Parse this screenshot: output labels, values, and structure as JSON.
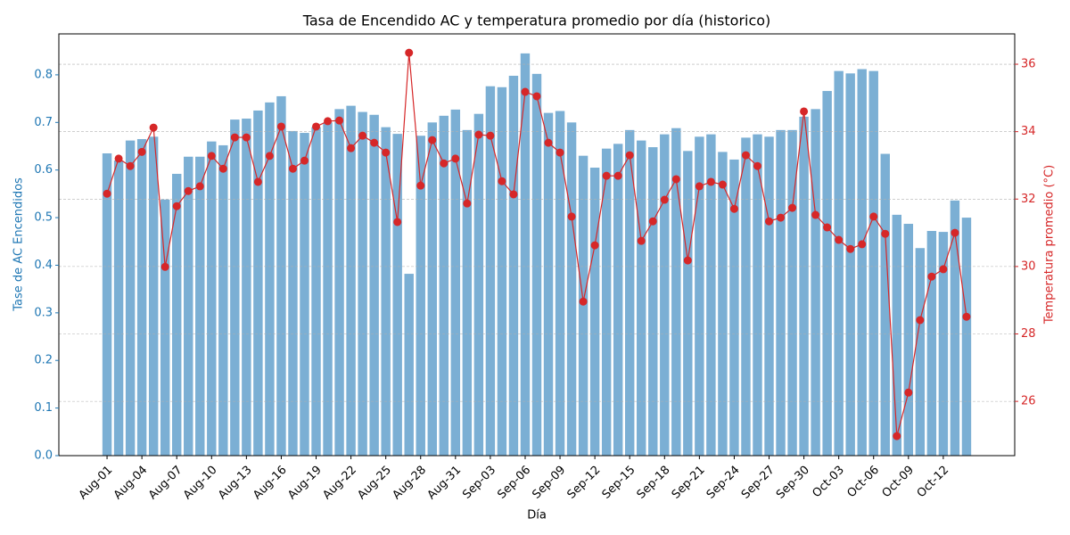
{
  "chart_data": {
    "type": "bar",
    "title": "Tasa de Encendido AC y temperatura promedio por día (historico)",
    "x_label": "Día",
    "y_label": "Tase de AC Encendidos",
    "y2_label": "Temperatura promedio (°C)",
    "categories": [
      "Aug-01",
      null,
      null,
      "Aug-04",
      null,
      null,
      "Aug-07",
      null,
      null,
      "Aug-10",
      null,
      null,
      "Aug-13",
      null,
      null,
      "Aug-16",
      null,
      null,
      "Aug-19",
      null,
      null,
      "Aug-22",
      null,
      null,
      "Aug-25",
      null,
      null,
      "Aug-28",
      null,
      null,
      "Aug-31",
      null,
      null,
      "Sep-03",
      null,
      null,
      "Sep-06",
      null,
      null,
      "Sep-09",
      null,
      null,
      "Sep-12",
      null,
      null,
      "Sep-15",
      null,
      null,
      "Sep-18",
      null,
      null,
      "Sep-21",
      null,
      null,
      "Sep-24",
      null,
      null,
      "Sep-27",
      null,
      null,
      "Sep-30",
      null,
      null,
      "Oct-03",
      null,
      null,
      "Oct-06",
      null,
      null,
      "Oct-09",
      null,
      null,
      "Oct-12",
      null,
      null
    ],
    "series": [
      {
        "type": "bar",
        "axis": "y",
        "color": "#7bafd4",
        "values": [
          0.635,
          0.62,
          0.662,
          0.665,
          0.67,
          0.538,
          0.592,
          0.628,
          0.628,
          0.66,
          0.652,
          0.706,
          0.708,
          0.725,
          0.742,
          0.755,
          0.682,
          0.678,
          0.69,
          0.7,
          0.728,
          0.735,
          0.722,
          0.716,
          0.69,
          0.676,
          0.382,
          0.672,
          0.7,
          0.714,
          0.727,
          0.684,
          0.718,
          0.776,
          0.774,
          0.798,
          0.845,
          0.802,
          0.72,
          0.724,
          0.7,
          0.63,
          0.605,
          0.645,
          0.655,
          0.684,
          0.662,
          0.648,
          0.675,
          0.688,
          0.64,
          0.67,
          0.675,
          0.638,
          0.622,
          0.668,
          0.675,
          0.67,
          0.684,
          0.684,
          0.712,
          0.728,
          0.766,
          0.808,
          0.803,
          0.812,
          0.808,
          0.634,
          0.506,
          0.487,
          0.436,
          0.472,
          0.47,
          0.536,
          0.5
        ]
      },
      {
        "type": "line",
        "axis": "y2",
        "color": "#d62728",
        "values": [
          32.16,
          33.2,
          32.98,
          33.4,
          34.12,
          29.99,
          31.79,
          32.24,
          32.38,
          33.28,
          32.9,
          33.83,
          33.83,
          32.51,
          33.28,
          34.15,
          32.9,
          33.14,
          34.15,
          34.31,
          34.33,
          33.51,
          33.88,
          33.67,
          33.38,
          31.32,
          36.34,
          32.4,
          33.75,
          33.06,
          33.2,
          31.87,
          33.91,
          33.88,
          32.53,
          32.14,
          35.18,
          35.05,
          33.67,
          33.38,
          31.48,
          28.96,
          30.63,
          32.69,
          32.69,
          33.3,
          30.76,
          31.34,
          31.98,
          32.59,
          30.18,
          32.38,
          32.51,
          32.43,
          31.71,
          33.3,
          32.98,
          31.34,
          31.45,
          31.74,
          34.6,
          31.53,
          31.16,
          30.79,
          30.52,
          30.66,
          31.48,
          30.97,
          24.97,
          26.26,
          28.41,
          29.7,
          29.92,
          31.0,
          28.51
        ]
      }
    ],
    "ylim": [
      0,
      0.886
    ],
    "yticks": [
      {
        "value": 0,
        "label": "0.0"
      },
      {
        "value": 0.1,
        "label": "0.1"
      },
      {
        "value": 0.2,
        "label": "0.2"
      },
      {
        "value": 0.3,
        "label": "0.3"
      },
      {
        "value": 0.4,
        "label": "0.4"
      },
      {
        "value": 0.5,
        "label": "0.5"
      },
      {
        "value": 0.6,
        "label": "0.6"
      },
      {
        "value": 0.7,
        "label": "0.7"
      },
      {
        "value": 0.8,
        "label": "0.8"
      }
    ],
    "y2lim": [
      24.39,
      36.9
    ],
    "y2ticks": [
      26,
      28,
      30,
      32,
      34,
      36
    ],
    "y_color": "#1f77b4",
    "y2_color": "#d62728",
    "grid": true
  }
}
